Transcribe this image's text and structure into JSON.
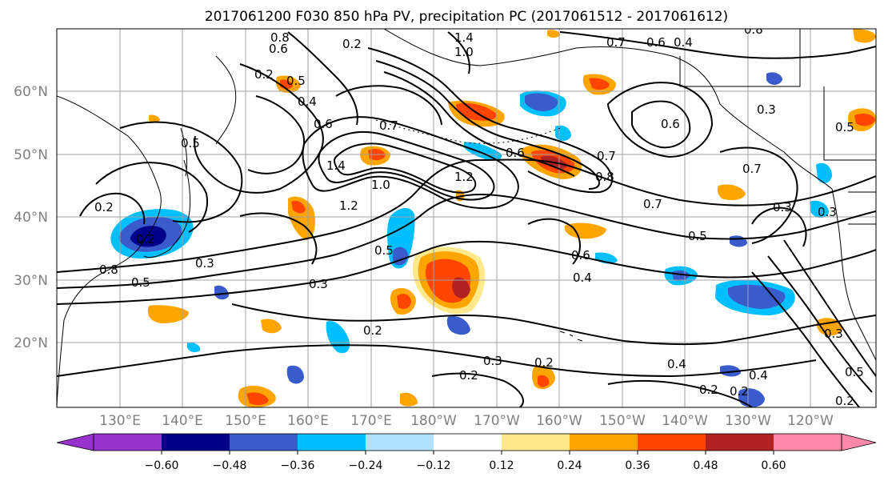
{
  "title": "2017061200 F030 850 hPa PV, precipitation PC (2017061512 - 2017061612)",
  "map": {
    "lat_labels": [
      "60°N",
      "50°N",
      "40°N",
      "30°N",
      "20°N"
    ],
    "lon_labels": [
      "130°E",
      "140°E",
      "150°E",
      "160°E",
      "170°E",
      "180°W",
      "170°W",
      "160°W",
      "150°W",
      "140°W",
      "130°W",
      "120°W"
    ],
    "contour_labels": [
      "0.8",
      "1.4",
      "1.0",
      "0.7",
      "0.6",
      "0.4",
      "0.2",
      "0.6",
      "0.2",
      "0.5",
      "0.4",
      "0.6",
      "0.8",
      "0.7",
      "1.4",
      "1.2",
      "1.0",
      "1.2",
      "0.6",
      "0.7",
      "0.8",
      "0.7",
      "0.3",
      "0.6",
      "0.5",
      "0.2",
      "0.5",
      "0.2",
      "0.8",
      "0.3",
      "0.5",
      "0.3",
      "0.5",
      "0.6",
      "0.4",
      "0.7",
      "0.5",
      "0.3",
      "0.3",
      "0.2",
      "0.3",
      "0.2",
      "0.4",
      "0.2",
      "0.2",
      "0.4",
      "0.5",
      "0.2",
      "0.2",
      "0.3"
    ]
  },
  "colorbar": {
    "tick_labels": [
      "−0.60",
      "−0.48",
      "−0.36",
      "−0.24",
      "−0.12",
      "0.12",
      "0.24",
      "0.36",
      "0.48",
      "0.60"
    ],
    "colors": [
      "#9932cc",
      "#00008b",
      "#3a5bcc",
      "#00bfff",
      "#b0e2ff",
      "#ffffff",
      "#ffe98a",
      "#ffa500",
      "#ff4500",
      "#b22222",
      "#ff88aa"
    ]
  },
  "colors": {
    "gridline": "#a0a0a0",
    "contour": "#000000",
    "axis_label": "#808080"
  }
}
